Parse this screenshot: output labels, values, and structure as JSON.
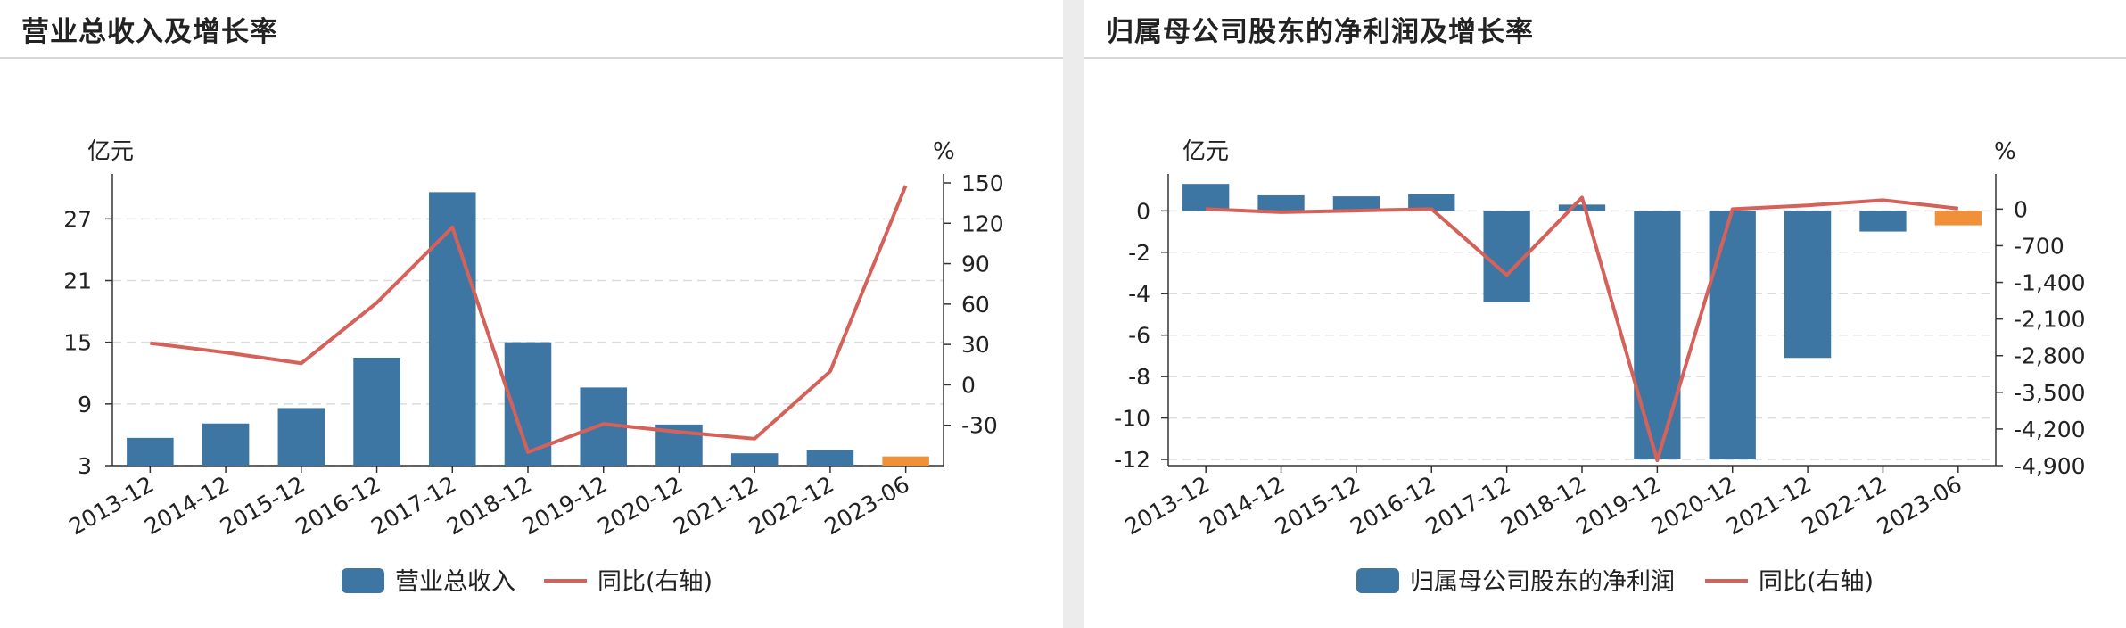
{
  "panels": [
    {
      "title": "营业总收入及增长率",
      "left_unit": "亿元",
      "right_unit": "%",
      "legend_bar": "营业总收入",
      "legend_line": "同比(右轴)"
    },
    {
      "title": "归属母公司股东的净利润及增长率",
      "left_unit": "亿元",
      "right_unit": "%",
      "legend_bar": "归属母公司股东的净利润",
      "legend_line": "同比(右轴)"
    }
  ],
  "colors": {
    "bar": "#3d76a3",
    "bar_highlight": "#f0913a",
    "line": "#d5625a",
    "grid": "#dcdcdc",
    "axis": "#333333"
  },
  "chart_data": [
    {
      "type": "bar",
      "categories": [
        "2013-12",
        "2014-12",
        "2015-12",
        "2016-12",
        "2017-12",
        "2018-12",
        "2019-12",
        "2020-12",
        "2021-12",
        "2022-12",
        "2023-06"
      ],
      "series": [
        {
          "name": "营业总收入",
          "values": [
            5.7,
            7.1,
            8.6,
            13.5,
            29.6,
            15.0,
            10.6,
            7.0,
            4.2,
            4.5,
            3.9
          ],
          "axis": "left",
          "highlight_last": true
        },
        {
          "name": "同比(右轴)",
          "type": "line",
          "values": [
            31,
            24,
            16,
            61,
            117,
            -50,
            -29,
            -35,
            -40,
            10,
            148
          ],
          "axis": "right"
        }
      ],
      "yleft": {
        "ticks": [
          3,
          9,
          15,
          21,
          27
        ],
        "range": [
          3,
          30.5
        ]
      },
      "yright": {
        "ticks": [
          -30,
          0,
          30,
          60,
          90,
          120,
          150
        ],
        "range": [
          -60,
          150
        ]
      }
    },
    {
      "type": "bar",
      "categories": [
        "2013-12",
        "2014-12",
        "2015-12",
        "2016-12",
        "2017-12",
        "2018-12",
        "2019-12",
        "2020-12",
        "2021-12",
        "2022-12",
        "2023-06"
      ],
      "series": [
        {
          "name": "归属母公司股东的净利润",
          "values": [
            1.3,
            0.75,
            0.7,
            0.8,
            -4.4,
            0.3,
            -12.0,
            -12.0,
            -7.1,
            -1.0,
            -0.7
          ],
          "axis": "left",
          "highlight_last": true
        },
        {
          "name": "同比(右轴)",
          "type": "line",
          "values": [
            0,
            -60,
            -30,
            0,
            -1260,
            220,
            -4800,
            0,
            70,
            170,
            10
          ],
          "axis": "right"
        }
      ],
      "yleft": {
        "ticks": [
          -12,
          -10,
          -8,
          -6,
          -4,
          -2,
          0
        ],
        "range": [
          -12.3,
          1.35
        ]
      },
      "yright": {
        "ticks": [
          "0",
          "-700",
          "-1,400",
          "-2,100",
          "-2,800",
          "-3,500",
          "-4,200",
          "-4,900"
        ],
        "tick_values": [
          0,
          -700,
          -1400,
          -2100,
          -2800,
          -3500,
          -4200,
          -4900
        ],
        "range": [
          -4900,
          500
        ]
      }
    }
  ]
}
